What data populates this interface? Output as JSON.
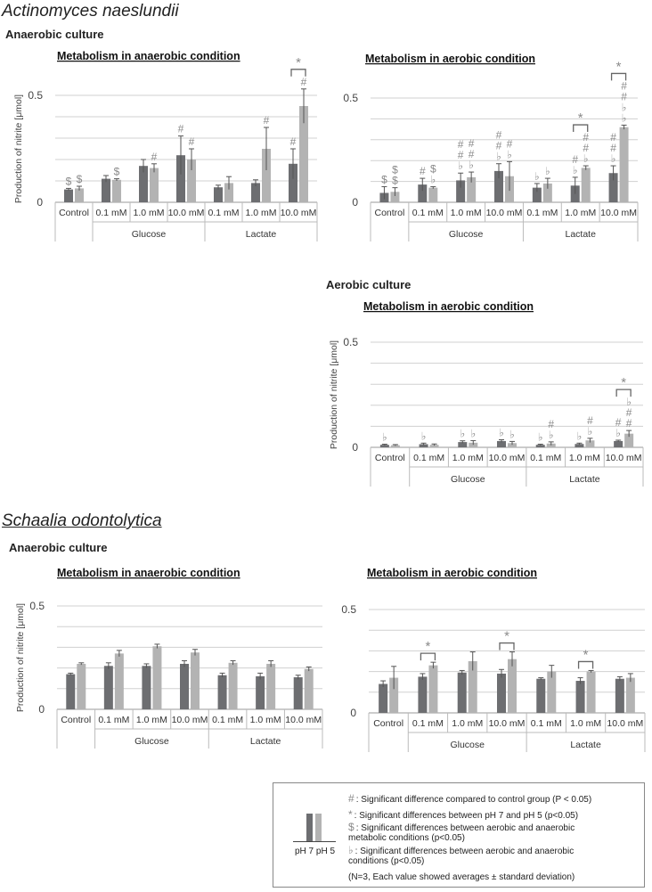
{
  "species": [
    "Actinomyces naeslundii",
    "Schaalia odontolytica"
  ],
  "culture_labels": {
    "a_anaerobic": "Anaerobic culture",
    "a_aerobic": "Aerobic culture",
    "s_anaerobic": "Anaerobic culture"
  },
  "colors": {
    "ph7": "#6d6e71",
    "ph5": "#b3b3b3",
    "mark": "#8a8a8a",
    "grid": "#d0d0d0"
  },
  "legend": {
    "ph7": "pH 7",
    "ph5": "pH 5",
    "sym_hash": "#",
    "sym_star": "*",
    "sym_dollar": "$",
    "sym_flat": "♭",
    "hash": ": Significant difference compared to control group (P < 0.05)",
    "star": ": Significant differences between pH 7 and pH 5 (p<0.05)",
    "dollar": ": Significant differences between aerobic and anaerobic metabolic conditions (p<0.05)",
    "flat": ": Significant differences between aerobic and anaerobic conditions (p<0.05)",
    "note": "(N=3, Each value showed averages ± standard deviation)"
  },
  "chart_data": [
    {
      "type": "bar",
      "title": "Metabolism in anaerobic condition",
      "ylabel": "Production of nitrite [μmol]",
      "ylim": [
        0,
        0.5
      ],
      "yticks": [
        "0",
        "0.5"
      ],
      "categories": [
        "Control",
        "0.1 mM",
        "1.0 mM",
        "10.0 mM",
        "0.1 mM",
        "1.0 mM",
        "10.0 mM"
      ],
      "groups": [
        {
          "label": "Glucose",
          "from": 1,
          "to": 3
        },
        {
          "label": "Lactate",
          "from": 4,
          "to": 6
        }
      ],
      "series": [
        {
          "name": "pH 7",
          "values": [
            0.06,
            0.11,
            0.17,
            0.22,
            0.07,
            0.09,
            0.18
          ],
          "err": [
            0.005,
            0.015,
            0.03,
            0.09,
            0.01,
            0.015,
            0.07
          ]
        },
        {
          "name": "pH 5",
          "values": [
            0.065,
            0.105,
            0.16,
            0.2,
            0.09,
            0.25,
            0.45
          ],
          "err": [
            0.01,
            0.005,
            0.02,
            0.05,
            0.03,
            0.1,
            0.08
          ]
        }
      ],
      "annotations": [
        {
          "cat": 0,
          "s": 0,
          "marks": [
            "$"
          ]
        },
        {
          "cat": 0,
          "s": 1,
          "marks": [
            "$"
          ]
        },
        {
          "cat": 1,
          "s": 1,
          "marks": [
            "$"
          ]
        },
        {
          "cat": 2,
          "s": 1,
          "marks": [
            "#"
          ]
        },
        {
          "cat": 3,
          "s": 0,
          "marks": [
            "#"
          ]
        },
        {
          "cat": 3,
          "s": 1,
          "marks": [
            "#"
          ]
        },
        {
          "cat": 5,
          "s": 1,
          "marks": [
            "#"
          ]
        },
        {
          "cat": 6,
          "s": 0,
          "marks": [
            "#"
          ]
        },
        {
          "cat": 6,
          "s": 1,
          "marks": [
            "#"
          ]
        }
      ],
      "brackets": [
        {
          "cat": 6,
          "label": "*"
        }
      ]
    },
    {
      "type": "bar",
      "title": "Metabolism in aerobic condition",
      "ylabel": "",
      "ylim": [
        0,
        0.5
      ],
      "yticks": [
        "0",
        "0.5"
      ],
      "categories": [
        "Control",
        "0.1 mM",
        "1.0 mM",
        "10.0 mM",
        "0.1 mM",
        "1.0 mM",
        "10.0 mM"
      ],
      "groups": [
        {
          "label": "Glucose",
          "from": 1,
          "to": 3
        },
        {
          "label": "Lactate",
          "from": 4,
          "to": 6
        }
      ],
      "series": [
        {
          "name": "pH 7",
          "values": [
            0.045,
            0.085,
            0.105,
            0.15,
            0.07,
            0.08,
            0.14
          ],
          "err": [
            0.03,
            0.03,
            0.035,
            0.035,
            0.02,
            0.04,
            0.035
          ]
        },
        {
          "name": "pH 5",
          "values": [
            0.05,
            0.07,
            0.12,
            0.125,
            0.09,
            0.165,
            0.36
          ],
          "err": [
            0.02,
            0.005,
            0.025,
            0.07,
            0.025,
            0.01,
            0.01
          ]
        }
      ],
      "annotations": [
        {
          "cat": 0,
          "s": 0,
          "marks": [
            "$"
          ]
        },
        {
          "cat": 0,
          "s": 1,
          "marks": [
            "$",
            "$"
          ]
        },
        {
          "cat": 1,
          "s": 0,
          "marks": [
            "#"
          ]
        },
        {
          "cat": 1,
          "s": 1,
          "marks": [
            "$",
            "♭"
          ]
        },
        {
          "cat": 2,
          "s": 0,
          "marks": [
            "#",
            "#",
            "♭"
          ]
        },
        {
          "cat": 2,
          "s": 1,
          "marks": [
            "#",
            "#",
            "♭"
          ]
        },
        {
          "cat": 3,
          "s": 0,
          "marks": [
            "#",
            "#",
            "♭"
          ]
        },
        {
          "cat": 3,
          "s": 1,
          "marks": [
            "#",
            "♭"
          ]
        },
        {
          "cat": 4,
          "s": 0,
          "marks": [
            "♭"
          ]
        },
        {
          "cat": 4,
          "s": 1,
          "marks": [
            "♭"
          ]
        },
        {
          "cat": 5,
          "s": 0,
          "marks": [
            "#",
            "♭"
          ]
        },
        {
          "cat": 5,
          "s": 1,
          "marks": [
            "#",
            "#",
            "♭"
          ]
        },
        {
          "cat": 6,
          "s": 0,
          "marks": [
            "#",
            "#",
            "♭"
          ]
        },
        {
          "cat": 6,
          "s": 1,
          "marks": [
            "#",
            "#",
            "♭",
            "♭"
          ]
        }
      ],
      "brackets": [
        {
          "cat": 5,
          "label": "*"
        },
        {
          "cat": 6,
          "label": "*"
        }
      ]
    },
    {
      "type": "bar",
      "title": "Metabolism in aerobic condition",
      "ylabel": "Production of nitrite [μmol]",
      "ylim": [
        0,
        0.5
      ],
      "yticks": [
        "0",
        "0.5"
      ],
      "categories": [
        "Control",
        "0.1 mM",
        "1.0 mM",
        "10.0 mM",
        "0.1 mM",
        "1.0 mM",
        "10.0 mM"
      ],
      "groups": [
        {
          "label": "Glucose",
          "from": 1,
          "to": 3
        },
        {
          "label": "Lactate",
          "from": 4,
          "to": 6
        }
      ],
      "series": [
        {
          "name": "pH 7",
          "values": [
            0.012,
            0.015,
            0.025,
            0.03,
            0.012,
            0.016,
            0.03
          ],
          "err": [
            0.003,
            0.005,
            0.006,
            0.006,
            0.003,
            0.004,
            0.004
          ]
        },
        {
          "name": "pH 5",
          "values": [
            0.01,
            0.012,
            0.022,
            0.02,
            0.018,
            0.033,
            0.065
          ],
          "err": [
            0.003,
            0.004,
            0.01,
            0.008,
            0.008,
            0.01,
            0.015
          ]
        }
      ],
      "annotations": [
        {
          "cat": 0,
          "s": 0,
          "marks": [
            "♭"
          ]
        },
        {
          "cat": 1,
          "s": 0,
          "marks": [
            "♭"
          ]
        },
        {
          "cat": 2,
          "s": 0,
          "marks": [
            "♭"
          ]
        },
        {
          "cat": 2,
          "s": 1,
          "marks": [
            "♭"
          ]
        },
        {
          "cat": 3,
          "s": 0,
          "marks": [
            "♭"
          ]
        },
        {
          "cat": 3,
          "s": 1,
          "marks": [
            "♭"
          ]
        },
        {
          "cat": 4,
          "s": 0,
          "marks": [
            "♭"
          ]
        },
        {
          "cat": 4,
          "s": 1,
          "marks": [
            "#",
            "♭"
          ]
        },
        {
          "cat": 5,
          "s": 0,
          "marks": [
            "♭"
          ]
        },
        {
          "cat": 5,
          "s": 1,
          "marks": [
            "#",
            "♭"
          ]
        },
        {
          "cat": 6,
          "s": 0,
          "marks": [
            "#",
            "♭"
          ]
        },
        {
          "cat": 6,
          "s": 1,
          "marks": [
            "♭",
            "#",
            "#"
          ]
        }
      ],
      "brackets": [
        {
          "cat": 6,
          "label": "*"
        }
      ]
    },
    {
      "type": "bar",
      "title": "Metabolism in anaerobic condition",
      "ylabel": "Production of nitrite [μmol]",
      "ylim": [
        0,
        0.5
      ],
      "yticks": [
        "0",
        "0.5"
      ],
      "categories": [
        "Control",
        "0.1 mM",
        "1.0 mM",
        "10.0 mM",
        "0.1 mM",
        "1.0 mM",
        "10.0 mM"
      ],
      "groups": [
        {
          "label": "Glucose",
          "from": 1,
          "to": 3
        },
        {
          "label": "Lactate",
          "from": 4,
          "to": 6
        }
      ],
      "series": [
        {
          "name": "pH 7",
          "values": [
            0.17,
            0.21,
            0.21,
            0.22,
            0.165,
            0.16,
            0.155
          ],
          "err": [
            0.005,
            0.015,
            0.01,
            0.015,
            0.01,
            0.015,
            0.01
          ]
        },
        {
          "name": "pH 5",
          "values": [
            0.22,
            0.27,
            0.305,
            0.275,
            0.225,
            0.22,
            0.195
          ],
          "err": [
            0.005,
            0.015,
            0.01,
            0.015,
            0.01,
            0.015,
            0.01
          ]
        }
      ],
      "annotations": [],
      "brackets": []
    },
    {
      "type": "bar",
      "title": "Metabolism in aerobic condition",
      "ylabel": "",
      "ylim": [
        0,
        0.5
      ],
      "yticks": [
        "0",
        "0.5"
      ],
      "categories": [
        "Control",
        "0.1 mM",
        "1.0 mM",
        "10.0 mM",
        "0.1 mM",
        "1.0 mM",
        "10.0 mM"
      ],
      "groups": [
        {
          "label": "Glucose",
          "from": 1,
          "to": 3
        },
        {
          "label": "Lactate",
          "from": 4,
          "to": 6
        }
      ],
      "series": [
        {
          "name": "pH 7",
          "values": [
            0.14,
            0.175,
            0.195,
            0.19,
            0.165,
            0.155,
            0.165
          ],
          "err": [
            0.015,
            0.015,
            0.01,
            0.02,
            0.005,
            0.015,
            0.01
          ]
        },
        {
          "name": "pH 5",
          "values": [
            0.17,
            0.23,
            0.25,
            0.26,
            0.2,
            0.2,
            0.17
          ],
          "err": [
            0.055,
            0.015,
            0.045,
            0.035,
            0.03,
            0.005,
            0.02
          ]
        }
      ],
      "annotations": [],
      "brackets": [
        {
          "cat": 1,
          "label": "*"
        },
        {
          "cat": 3,
          "label": "*"
        },
        {
          "cat": 5,
          "label": "*"
        }
      ]
    }
  ]
}
